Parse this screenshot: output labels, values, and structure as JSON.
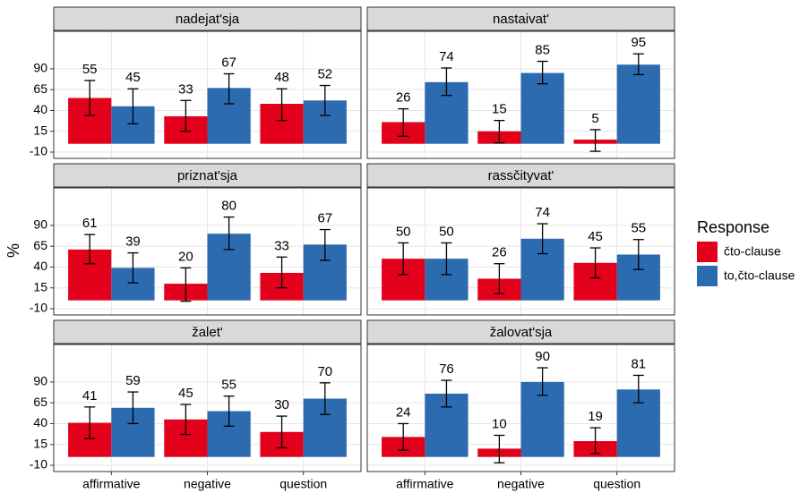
{
  "chart_data": {
    "type": "bar",
    "ylabel": "%",
    "legend_title": "Response",
    "categories": [
      "affirmative",
      "negative",
      "question"
    ],
    "ylim": [
      -17.5,
      135
    ],
    "yticks": [
      -10,
      15,
      40,
      65,
      90
    ],
    "grid": true,
    "series": [
      {
        "name": "čto-clause",
        "color": "#e3001b"
      },
      {
        "name": "to,čto-clause",
        "color": "#2d6bb0"
      }
    ],
    "panels": [
      {
        "title": "nadejat'sja",
        "series": [
          {
            "values": [
              55,
              33,
              48
            ],
            "lower": [
              34,
              15,
              28
            ],
            "upper": [
              76,
              52,
              66
            ]
          },
          {
            "values": [
              45,
              67,
              52
            ],
            "lower": [
              24,
              48,
              34
            ],
            "upper": [
              66,
              84,
              70
            ]
          }
        ]
      },
      {
        "title": "nastaivat'",
        "series": [
          {
            "values": [
              26,
              15,
              5
            ],
            "lower": [
              9,
              1,
              -9
            ],
            "upper": [
              42,
              28,
              17
            ]
          },
          {
            "values": [
              74,
              85,
              95
            ],
            "lower": [
              58,
              72,
              83
            ],
            "upper": [
              91,
              99,
              108
            ]
          }
        ]
      },
      {
        "title": "priznat'sja",
        "series": [
          {
            "values": [
              61,
              20,
              33
            ],
            "lower": [
              44,
              -1,
              15
            ],
            "upper": [
              79,
              39,
              52
            ]
          },
          {
            "values": [
              39,
              80,
              67
            ],
            "lower": [
              21,
              61,
              48
            ],
            "upper": [
              57,
              100,
              85
            ]
          }
        ]
      },
      {
        "title": "rassčityvat'",
        "series": [
          {
            "values": [
              50,
              26,
              45
            ],
            "lower": [
              31,
              8,
              27
            ],
            "upper": [
              69,
              44,
              63
            ]
          },
          {
            "values": [
              50,
              74,
              55
            ],
            "lower": [
              31,
              56,
              37
            ],
            "upper": [
              69,
              92,
              73
            ]
          }
        ]
      },
      {
        "title": "žalet'",
        "series": [
          {
            "values": [
              41,
              45,
              30
            ],
            "lower": [
              22,
              27,
              11
            ],
            "upper": [
              60,
              63,
              49
            ]
          },
          {
            "values": [
              59,
              55,
              70
            ],
            "lower": [
              40,
              37,
              51
            ],
            "upper": [
              78,
              73,
              89
            ]
          }
        ]
      },
      {
        "title": "žalovat'sja",
        "series": [
          {
            "values": [
              24,
              10,
              19
            ],
            "lower": [
              8,
              -7,
              4
            ],
            "upper": [
              40,
              26,
              35
            ]
          },
          {
            "values": [
              76,
              90,
              81
            ],
            "lower": [
              60,
              74,
              65
            ],
            "upper": [
              92,
              107,
              98
            ]
          }
        ]
      }
    ]
  }
}
